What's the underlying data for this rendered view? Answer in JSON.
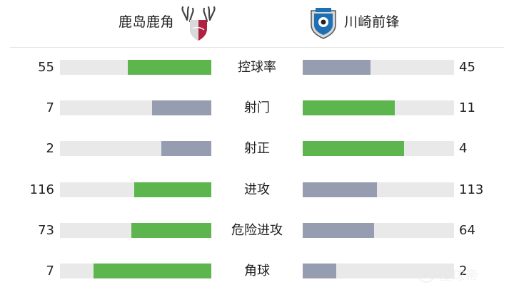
{
  "teams": {
    "home": {
      "name": "鹿岛鹿角",
      "crest_icon": "kashima-antlers-crest-icon",
      "crest_color": "#b0213f"
    },
    "away": {
      "name": "川崎前锋",
      "crest_icon": "kawasaki-frontale-crest-icon",
      "crest_color": "#1f6fb5"
    }
  },
  "colors": {
    "higher": "#5cb64d",
    "lower": "#979db0",
    "track": "#e9e9e9"
  },
  "stats": [
    {
      "label": "控球率",
      "home": "55",
      "away": "45",
      "home_ratio": 0.55,
      "away_ratio": 0.45,
      "home_color": "#5cb64d",
      "away_color": "#979db0"
    },
    {
      "label": "射门",
      "home": "7",
      "away": "11",
      "home_ratio": 0.39,
      "away_ratio": 0.61,
      "home_color": "#979db0",
      "away_color": "#5cb64d"
    },
    {
      "label": "射正",
      "home": "2",
      "away": "4",
      "home_ratio": 0.33,
      "away_ratio": 0.67,
      "home_color": "#979db0",
      "away_color": "#5cb64d"
    },
    {
      "label": "进攻",
      "home": "116",
      "away": "113",
      "home_ratio": 0.51,
      "away_ratio": 0.49,
      "home_color": "#5cb64d",
      "away_color": "#979db0"
    },
    {
      "label": "危险进攻",
      "home": "73",
      "away": "64",
      "home_ratio": 0.53,
      "away_ratio": 0.47,
      "home_color": "#5cb64d",
      "away_color": "#979db0"
    },
    {
      "label": "角球",
      "home": "7",
      "away": "2",
      "home_ratio": 0.78,
      "away_ratio": 0.22,
      "home_color": "#5cb64d",
      "away_color": "#979db0"
    }
  ],
  "watermark": {
    "text": "懂球帝"
  }
}
